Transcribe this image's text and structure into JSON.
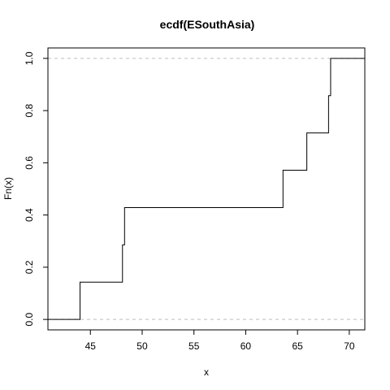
{
  "chart_data": {
    "type": "line",
    "subtype": "ecdf-step",
    "title": "ecdf(ESouthAsia)",
    "xlabel": "x",
    "ylabel": "Fn(x)",
    "xlim": [
      40.9,
      71.5
    ],
    "ylim": [
      -0.04,
      1.04
    ],
    "x_ticks": [
      45,
      50,
      55,
      60,
      65,
      70
    ],
    "y_ticks": [
      0.0,
      0.2,
      0.4,
      0.6,
      0.8,
      1.0
    ],
    "y_tick_labels": [
      "0.0",
      "0.2",
      "0.4",
      "0.6",
      "0.8",
      "1.0"
    ],
    "reference_lines": [
      0,
      1
    ],
    "reference_line_color": "#bebebe",
    "line_color": "#000000",
    "steps": [
      {
        "x": 44.0,
        "y": 0.1429
      },
      {
        "x": 48.1,
        "y": 0.2857
      },
      {
        "x": 48.3,
        "y": 0.4286
      },
      {
        "x": 63.6,
        "y": 0.5714
      },
      {
        "x": 65.9,
        "y": 0.7143
      },
      {
        "x": 68.0,
        "y": 0.8571
      },
      {
        "x": 68.2,
        "y": 1.0
      }
    ]
  }
}
